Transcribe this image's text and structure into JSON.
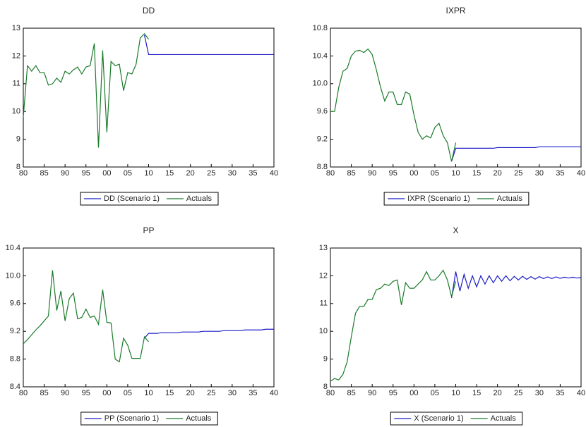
{
  "chart_data": [
    {
      "type": "line",
      "title": "DD",
      "x": [
        1980,
        1981,
        1982,
        1983,
        1984,
        1985,
        1986,
        1987,
        1988,
        1989,
        1990,
        1991,
        1992,
        1993,
        1994,
        1995,
        1996,
        1997,
        1998,
        1999,
        2000,
        2001,
        2002,
        2003,
        2004,
        2005,
        2006,
        2007,
        2008,
        2009,
        2010,
        2011,
        2012,
        2013,
        2014,
        2015,
        2016,
        2017,
        2018,
        2019,
        2020,
        2021,
        2022,
        2023,
        2024,
        2025,
        2026,
        2027,
        2028,
        2029,
        2030,
        2031,
        2032,
        2033,
        2034,
        2035,
        2036,
        2037,
        2038,
        2039,
        2040
      ],
      "series": [
        {
          "name": "DD (Scenario 1)",
          "color": "#1c1cc8",
          "values": [
            null,
            null,
            null,
            null,
            null,
            null,
            null,
            null,
            null,
            null,
            null,
            null,
            null,
            null,
            null,
            null,
            null,
            null,
            null,
            null,
            null,
            null,
            null,
            null,
            null,
            null,
            null,
            null,
            null,
            12.75,
            12.05,
            12.05,
            12.05,
            12.05,
            12.05,
            12.05,
            12.05,
            12.05,
            12.05,
            12.05,
            12.05,
            12.05,
            12.05,
            12.05,
            12.05,
            12.05,
            12.05,
            12.05,
            12.05,
            12.05,
            12.05,
            12.05,
            12.05,
            12.05,
            12.05,
            12.05,
            12.05,
            12.05,
            12.05,
            12.05,
            12.05
          ]
        },
        {
          "name": "Actuals",
          "color": "#1a7a2a",
          "values": [
            9.8,
            11.65,
            11.45,
            11.65,
            11.4,
            11.4,
            10.95,
            11.0,
            11.2,
            11.05,
            11.45,
            11.35,
            11.5,
            11.6,
            11.35,
            11.6,
            11.65,
            12.45,
            8.7,
            12.2,
            9.25,
            11.8,
            11.65,
            11.7,
            10.75,
            11.4,
            11.35,
            11.7,
            12.65,
            12.8,
            12.6,
            null,
            null,
            null,
            null,
            null,
            null,
            null,
            null,
            null,
            null,
            null,
            null,
            null,
            null,
            null,
            null,
            null,
            null,
            null,
            null,
            null,
            null,
            null,
            null,
            null,
            null,
            null,
            null,
            null,
            null
          ]
        }
      ],
      "xlim": [
        1980,
        2040
      ],
      "xticks": [
        {
          "value": 1980,
          "label": "80"
        },
        {
          "value": 1985,
          "label": "85"
        },
        {
          "value": 1990,
          "label": "90"
        },
        {
          "value": 1995,
          "label": "95"
        },
        {
          "value": 2000,
          "label": "00"
        },
        {
          "value": 2005,
          "label": "05"
        },
        {
          "value": 2010,
          "label": "10"
        },
        {
          "value": 2015,
          "label": "15"
        },
        {
          "value": 2020,
          "label": "20"
        },
        {
          "value": 2025,
          "label": "25"
        },
        {
          "value": 2030,
          "label": "30"
        },
        {
          "value": 2035,
          "label": "35"
        },
        {
          "value": 2040,
          "label": "40"
        }
      ],
      "ylim": [
        8,
        13
      ],
      "yticks": [
        8,
        9,
        10,
        11,
        12,
        13
      ],
      "legend": "bottom"
    },
    {
      "type": "line",
      "title": "IXPR",
      "x": [
        1980,
        1981,
        1982,
        1983,
        1984,
        1985,
        1986,
        1987,
        1988,
        1989,
        1990,
        1991,
        1992,
        1993,
        1994,
        1995,
        1996,
        1997,
        1998,
        1999,
        2000,
        2001,
        2002,
        2003,
        2004,
        2005,
        2006,
        2007,
        2008,
        2009,
        2010,
        2011,
        2012,
        2013,
        2014,
        2015,
        2016,
        2017,
        2018,
        2019,
        2020,
        2021,
        2022,
        2023,
        2024,
        2025,
        2026,
        2027,
        2028,
        2029,
        2030,
        2031,
        2032,
        2033,
        2034,
        2035,
        2036,
        2037,
        2038,
        2039,
        2040
      ],
      "series": [
        {
          "name": "IXPR (Scenario 1)",
          "color": "#1c1cc8",
          "values": [
            null,
            null,
            null,
            null,
            null,
            null,
            null,
            null,
            null,
            null,
            null,
            null,
            null,
            null,
            null,
            null,
            null,
            null,
            null,
            null,
            null,
            null,
            null,
            null,
            null,
            null,
            null,
            null,
            null,
            8.88,
            9.07,
            9.07,
            9.07,
            9.07,
            9.07,
            9.07,
            9.07,
            9.07,
            9.07,
            9.07,
            9.08,
            9.08,
            9.08,
            9.08,
            9.08,
            9.08,
            9.08,
            9.08,
            9.08,
            9.08,
            9.09,
            9.09,
            9.09,
            9.09,
            9.09,
            9.09,
            9.09,
            9.09,
            9.09,
            9.09,
            9.09
          ]
        },
        {
          "name": "Actuals",
          "color": "#1a7a2a",
          "values": [
            9.6,
            9.6,
            9.95,
            10.18,
            10.22,
            10.4,
            10.47,
            10.48,
            10.45,
            10.5,
            10.42,
            10.2,
            9.95,
            9.75,
            9.88,
            9.88,
            9.7,
            9.7,
            9.88,
            9.85,
            9.55,
            9.3,
            9.2,
            9.25,
            9.22,
            9.37,
            9.43,
            9.25,
            9.15,
            8.88,
            9.15,
            null,
            null,
            null,
            null,
            null,
            null,
            null,
            null,
            null,
            null,
            null,
            null,
            null,
            null,
            null,
            null,
            null,
            null,
            null,
            null,
            null,
            null,
            null,
            null,
            null,
            null,
            null,
            null,
            null,
            null
          ]
        }
      ],
      "xlim": [
        1980,
        2040
      ],
      "xticks": [
        {
          "value": 1980,
          "label": "80"
        },
        {
          "value": 1985,
          "label": "85"
        },
        {
          "value": 1990,
          "label": "90"
        },
        {
          "value": 1995,
          "label": "95"
        },
        {
          "value": 2000,
          "label": "00"
        },
        {
          "value": 2005,
          "label": "05"
        },
        {
          "value": 2010,
          "label": "10"
        },
        {
          "value": 2015,
          "label": "15"
        },
        {
          "value": 2020,
          "label": "20"
        },
        {
          "value": 2025,
          "label": "25"
        },
        {
          "value": 2030,
          "label": "30"
        },
        {
          "value": 2035,
          "label": "35"
        },
        {
          "value": 2040,
          "label": "40"
        }
      ],
      "ylim": [
        8.8,
        10.8
      ],
      "yticks": [
        8.8,
        9.2,
        9.6,
        {
          "value": 10,
          "label": "10.0"
        },
        10.4,
        10.8
      ],
      "legend": "bottom"
    },
    {
      "type": "line",
      "title": "PP",
      "x": [
        1980,
        1981,
        1982,
        1983,
        1984,
        1985,
        1986,
        1987,
        1988,
        1989,
        1990,
        1991,
        1992,
        1993,
        1994,
        1995,
        1996,
        1997,
        1998,
        1999,
        2000,
        2001,
        2002,
        2003,
        2004,
        2005,
        2006,
        2007,
        2008,
        2009,
        2010,
        2011,
        2012,
        2013,
        2014,
        2015,
        2016,
        2017,
        2018,
        2019,
        2020,
        2021,
        2022,
        2023,
        2024,
        2025,
        2026,
        2027,
        2028,
        2029,
        2030,
        2031,
        2032,
        2033,
        2034,
        2035,
        2036,
        2037,
        2038,
        2039,
        2040
      ],
      "series": [
        {
          "name": "PP (Scenario 1)",
          "color": "#1c1cc8",
          "values": [
            null,
            null,
            null,
            null,
            null,
            null,
            null,
            null,
            null,
            null,
            null,
            null,
            null,
            null,
            null,
            null,
            null,
            null,
            null,
            null,
            null,
            null,
            null,
            null,
            null,
            null,
            null,
            null,
            null,
            9.1,
            9.17,
            9.17,
            9.17,
            9.18,
            9.18,
            9.18,
            9.18,
            9.18,
            9.19,
            9.19,
            9.19,
            9.19,
            9.19,
            9.2,
            9.2,
            9.2,
            9.2,
            9.2,
            9.21,
            9.21,
            9.21,
            9.21,
            9.21,
            9.22,
            9.22,
            9.22,
            9.22,
            9.22,
            9.23,
            9.23,
            9.23
          ]
        },
        {
          "name": "Actuals",
          "color": "#1a7a2a",
          "values": [
            9.02,
            9.08,
            9.15,
            9.22,
            9.28,
            9.35,
            9.42,
            10.08,
            9.5,
            9.78,
            9.35,
            9.67,
            9.75,
            9.38,
            9.4,
            9.52,
            9.4,
            9.42,
            9.3,
            9.8,
            9.33,
            9.32,
            8.8,
            8.76,
            9.1,
            9.0,
            8.81,
            8.81,
            8.81,
            9.12,
            9.05,
            null,
            null,
            null,
            null,
            null,
            null,
            null,
            null,
            null,
            null,
            null,
            null,
            null,
            null,
            null,
            null,
            null,
            null,
            null,
            null,
            null,
            null,
            null,
            null,
            null,
            null,
            null,
            null,
            null,
            null
          ]
        }
      ],
      "xlim": [
        1980,
        2040
      ],
      "xticks": [
        {
          "value": 1980,
          "label": "80"
        },
        {
          "value": 1985,
          "label": "85"
        },
        {
          "value": 1990,
          "label": "90"
        },
        {
          "value": 1995,
          "label": "95"
        },
        {
          "value": 2000,
          "label": "00"
        },
        {
          "value": 2005,
          "label": "05"
        },
        {
          "value": 2010,
          "label": "10"
        },
        {
          "value": 2015,
          "label": "15"
        },
        {
          "value": 2020,
          "label": "20"
        },
        {
          "value": 2025,
          "label": "25"
        },
        {
          "value": 2030,
          "label": "30"
        },
        {
          "value": 2035,
          "label": "35"
        },
        {
          "value": 2040,
          "label": "40"
        }
      ],
      "ylim": [
        8.4,
        10.4
      ],
      "yticks": [
        8.4,
        8.8,
        9.2,
        9.6,
        {
          "value": 10,
          "label": "10.0"
        },
        10.4
      ],
      "legend": "bottom"
    },
    {
      "type": "line",
      "title": "X",
      "x": [
        1980,
        1981,
        1982,
        1983,
        1984,
        1985,
        1986,
        1987,
        1988,
        1989,
        1990,
        1991,
        1992,
        1993,
        1994,
        1995,
        1996,
        1997,
        1998,
        1999,
        2000,
        2001,
        2002,
        2003,
        2004,
        2005,
        2006,
        2007,
        2008,
        2009,
        2010,
        2011,
        2012,
        2013,
        2014,
        2015,
        2016,
        2017,
        2018,
        2019,
        2020,
        2021,
        2022,
        2023,
        2024,
        2025,
        2026,
        2027,
        2028,
        2029,
        2030,
        2031,
        2032,
        2033,
        2034,
        2035,
        2036,
        2037,
        2038,
        2039,
        2040
      ],
      "series": [
        {
          "name": "X (Scenario 1)",
          "color": "#1c1cc8",
          "values": [
            null,
            null,
            null,
            null,
            null,
            null,
            null,
            null,
            null,
            null,
            null,
            null,
            null,
            null,
            null,
            null,
            null,
            null,
            null,
            null,
            null,
            null,
            null,
            null,
            null,
            null,
            null,
            null,
            null,
            11.2,
            12.15,
            11.45,
            12.05,
            11.55,
            12.0,
            11.6,
            12.0,
            11.7,
            12.0,
            11.75,
            12.0,
            11.8,
            12.0,
            11.82,
            11.98,
            11.85,
            11.98,
            11.87,
            11.97,
            11.88,
            11.97,
            11.9,
            11.96,
            11.9,
            11.96,
            11.91,
            11.95,
            11.92,
            11.95,
            11.92,
            11.94
          ]
        },
        {
          "name": "Actuals",
          "color": "#1a7a2a",
          "values": [
            8.2,
            8.3,
            8.25,
            8.45,
            8.9,
            9.8,
            10.65,
            10.9,
            10.9,
            11.15,
            11.15,
            11.5,
            11.55,
            11.7,
            11.65,
            11.8,
            11.85,
            10.95,
            11.75,
            11.55,
            11.55,
            11.7,
            11.85,
            12.15,
            11.85,
            11.85,
            12.0,
            12.2,
            11.85,
            11.25,
            11.8,
            null,
            null,
            null,
            null,
            null,
            null,
            null,
            null,
            null,
            null,
            null,
            null,
            null,
            null,
            null,
            null,
            null,
            null,
            null,
            null,
            null,
            null,
            null,
            null,
            null,
            null,
            null,
            null,
            null,
            null
          ]
        }
      ],
      "xlim": [
        1980,
        2040
      ],
      "xticks": [
        {
          "value": 1980,
          "label": "80"
        },
        {
          "value": 1985,
          "label": "85"
        },
        {
          "value": 1990,
          "label": "90"
        },
        {
          "value": 1995,
          "label": "95"
        },
        {
          "value": 2000,
          "label": "00"
        },
        {
          "value": 2005,
          "label": "05"
        },
        {
          "value": 2010,
          "label": "10"
        },
        {
          "value": 2015,
          "label": "15"
        },
        {
          "value": 2020,
          "label": "20"
        },
        {
          "value": 2025,
          "label": "25"
        },
        {
          "value": 2030,
          "label": "30"
        },
        {
          "value": 2035,
          "label": "35"
        },
        {
          "value": 2040,
          "label": "40"
        }
      ],
      "ylim": [
        8,
        13
      ],
      "yticks": [
        8,
        9,
        10,
        11,
        12,
        13
      ],
      "legend": "bottom"
    }
  ]
}
